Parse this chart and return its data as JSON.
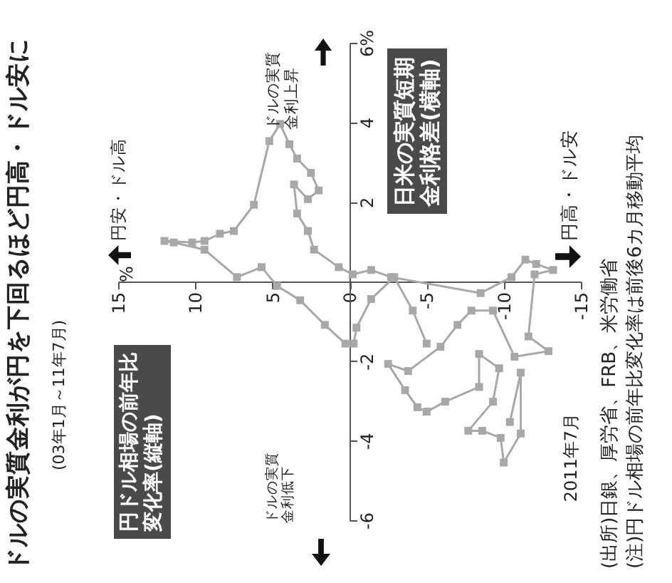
{
  "chart_data": {
    "type": "line",
    "title": "ドルの実質金利が円を下回るほど円高・ドル安に",
    "subtitle": "(03年1月～11年7月)",
    "color": "#a8a8a8",
    "marker": "square",
    "xlim": [
      15,
      -15
    ],
    "xticks": [
      15,
      10,
      5,
      0,
      -5,
      -10,
      -15
    ],
    "ylim": [
      -6,
      6
    ],
    "yticks": [
      -6,
      -4,
      -2,
      2,
      4,
      {
        "value": 6,
        "label": "6%"
      }
    ],
    "x": [
      -5.0,
      -4.1,
      -2.9,
      -1.4,
      -0.45,
      -0.27,
      0.27,
      1.6,
      3.2,
      4.7,
      5.7,
      7.3,
      9.4,
      11.4,
      12.0,
      10.2,
      9.4,
      8.4,
      7.5,
      6.2,
      5.2,
      4.5,
      3.9,
      3.4,
      2.5,
      2.0,
      2.7,
      3.6,
      3.4,
      2.7,
      2.3,
      0.7,
      -0.2,
      -1.4,
      -2.7,
      -8.5,
      -10.5,
      -11.4,
      -12.1,
      -13.2,
      -12.0,
      -11.6,
      -12.9,
      -10.7,
      -9.3,
      -7.9,
      -7.0,
      -5.9,
      -3.8,
      -2.5,
      -3.6,
      -4.4,
      -5.0,
      -6.2,
      -8.4,
      -8.4,
      -9.7,
      -9.3,
      -7.7,
      -8.6,
      -9.8,
      -10.0,
      -11.1,
      -11.1,
      -10.4
    ],
    "values": [
      -1.56,
      -0.73,
      0.11,
      -0.44,
      -1.16,
      -1.56,
      -1.56,
      -1.09,
      -0.47,
      -0.11,
      0.36,
      0.11,
      0.8,
      0.98,
      1.02,
      0.98,
      1.02,
      1.2,
      1.27,
      1.93,
      3.53,
      3.96,
      3.45,
      3.09,
      2.73,
      2.29,
      2.07,
      2.44,
      1.71,
      1.27,
      0.8,
      0.36,
      0.18,
      0.29,
      0.11,
      -0.29,
      0.11,
      0.55,
      0.44,
      0.29,
      0.18,
      -1.38,
      -1.75,
      -1.89,
      -0.73,
      -0.73,
      -1.09,
      -1.64,
      -2.25,
      -2.07,
      -2.73,
      -3.16,
      -3.27,
      -3.02,
      -2.65,
      -1.82,
      -2.18,
      -3.02,
      -3.75,
      -3.75,
      -3.93,
      -4.55,
      -3.82,
      -2.29,
      -3.53
    ],
    "annotations": [
      "円ドル相場の前年比変化率(縦軸)",
      "日米の実質短期金利格差(横軸)",
      "%",
      "円安・ドル高",
      "円高・ドル安",
      "ドルの実質金利上昇",
      "ドルの実質金利低下",
      {
        "text": "2011年7月",
        "x": -10.4,
        "y": -3.53
      },
      "(出所)日銀、厚労省、FRB、米労働省",
      "(注)円ドル相場の前年比変化率は前後6カ月移動平均"
    ]
  }
}
